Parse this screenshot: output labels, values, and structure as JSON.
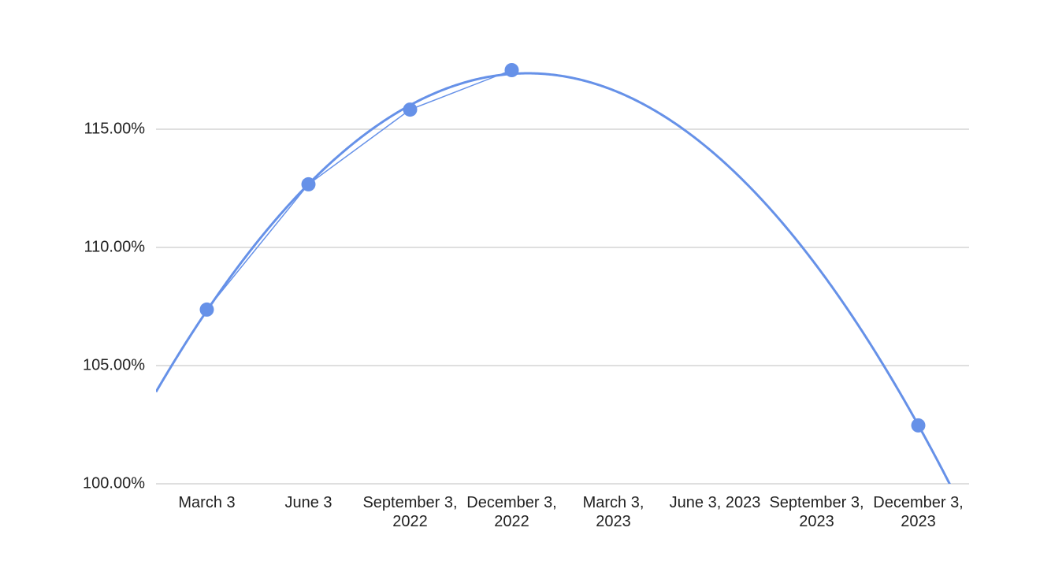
{
  "chart_data": {
    "type": "line",
    "categories": [
      "March 3",
      "June 3",
      "September 3, 2022",
      "December 3, 2022",
      "March 3, 2023",
      "June 3, 2023",
      "September 3, 2023",
      "December 3, 2023"
    ],
    "series": [
      {
        "color": "#6691e8",
        "values": [
          107.37,
          112.67,
          115.83,
          117.5,
          null,
          null,
          null,
          102.47
        ]
      }
    ],
    "trendline": {
      "type": "polynomial",
      "degree": 2
    },
    "ylim": [
      100,
      119
    ],
    "yticks": [
      {
        "value": 100,
        "label": "100.00%"
      },
      {
        "value": 105,
        "label": "105.00%"
      },
      {
        "value": 110,
        "label": "110.00%"
      },
      {
        "value": 115,
        "label": "115.00%"
      }
    ],
    "grid": true
  }
}
